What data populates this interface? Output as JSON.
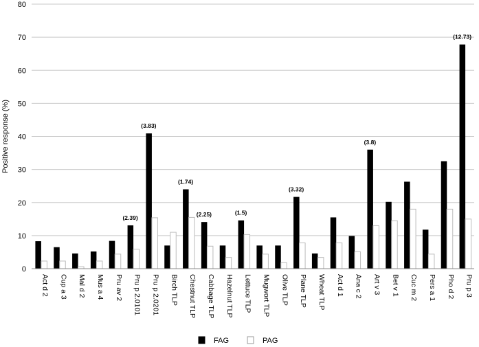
{
  "chart_data": {
    "type": "bar",
    "ylabel": "Positive response (%)",
    "ylim": [
      0,
      80
    ],
    "yticks": [
      0,
      10,
      20,
      30,
      40,
      50,
      60,
      70,
      80
    ],
    "grid": "horizontal",
    "legend_position": "bottom",
    "categories": [
      "Act d 2",
      "Cup a 3",
      "Mal d 2",
      "Mus a 4",
      "Pru av 2",
      "Pru p 2.0101",
      "Pru p 2.0201",
      "Birch TLP",
      "Chestnut TLP",
      "Cabbage TLP",
      "Hazelnut TLP",
      "Lettuce TLP",
      "Mugwort TLP",
      "Olive TLP",
      "Plane TLP",
      "Wheat TLP",
      "Act d 1",
      "Ana c 2",
      "Art v 3",
      "Bet v 1",
      "Cuc m 2",
      "Pers a 1",
      "Pho d 2",
      "Pru p 3"
    ],
    "series": [
      {
        "name": "FAG",
        "color": "#000000",
        "values": [
          8.3,
          6.5,
          4.6,
          5.2,
          8.4,
          13.1,
          40.9,
          7.0,
          24.0,
          14.1,
          7.0,
          14.6,
          7.0,
          7.0,
          21.7,
          4.6,
          15.5,
          9.9,
          36.0,
          20.2,
          26.3,
          11.8,
          32.5,
          67.8
        ]
      },
      {
        "name": "PAG",
        "color": "#ffffff",
        "values": [
          2.3,
          2.3,
          0.6,
          2.3,
          4.4,
          5.9,
          15.4,
          11.0,
          15.5,
          6.8,
          3.4,
          10.3,
          4.4,
          1.8,
          7.8,
          3.4,
          7.8,
          5.1,
          13.0,
          14.5,
          18.0,
          4.4,
          18.0,
          15.0
        ]
      }
    ],
    "annotations": [
      {
        "category_index": 5,
        "text": "(2.39)"
      },
      {
        "category_index": 6,
        "text": "(3.83)"
      },
      {
        "category_index": 8,
        "text": "(1.74)"
      },
      {
        "category_index": 9,
        "text": "(2.25)"
      },
      {
        "category_index": 11,
        "text": "(1.5)"
      },
      {
        "category_index": 14,
        "text": "(3.32)"
      },
      {
        "category_index": 18,
        "text": "(3.8)"
      },
      {
        "category_index": 23,
        "text": "(12.73)"
      }
    ]
  }
}
